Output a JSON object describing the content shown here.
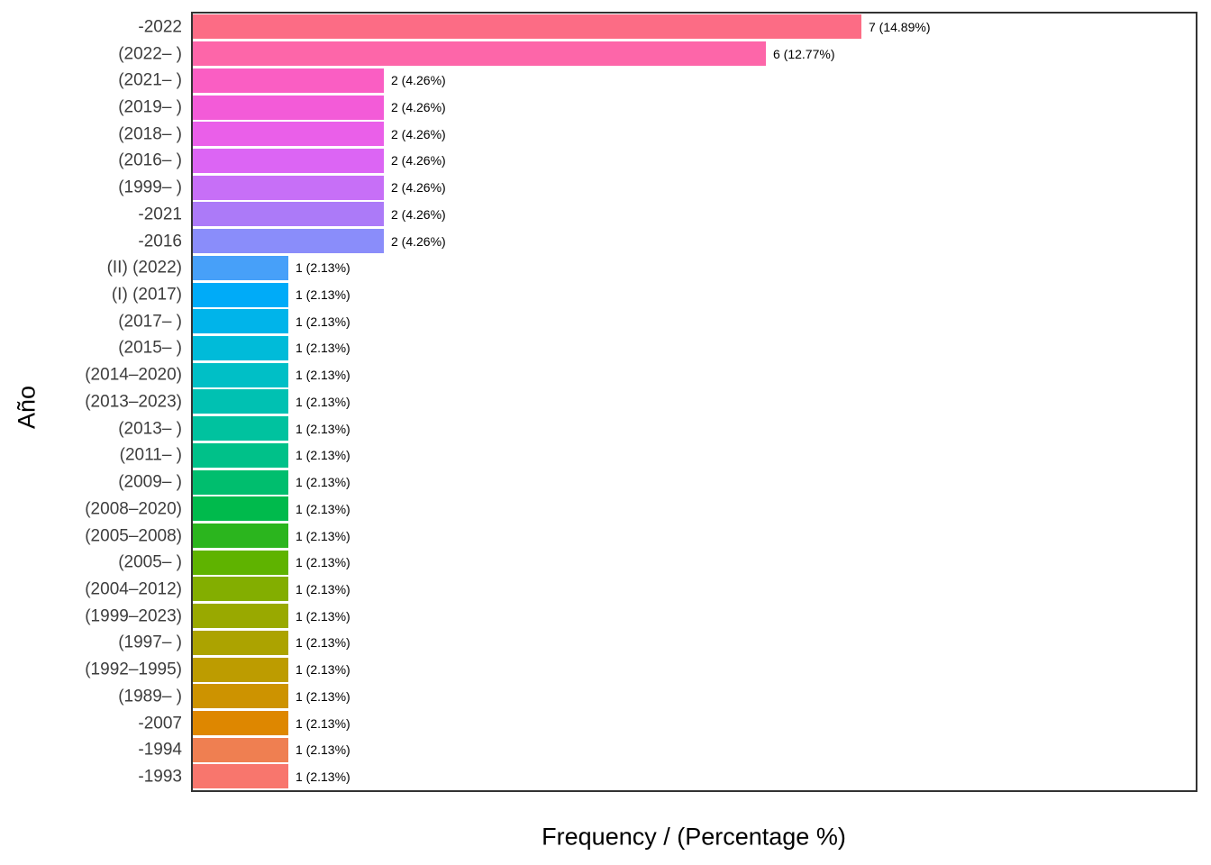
{
  "figure": {
    "background_color": "#ffffff",
    "panel_border_color": "#333333"
  },
  "chart_data": {
    "type": "bar",
    "orientation": "horizontal",
    "title": "",
    "xlabel": "Frequency / (Percentage %)",
    "ylabel": "Año",
    "xlim": [
      0,
      10.5
    ],
    "grid": false,
    "legend_position": "none",
    "categories": [
      "-2022",
      "(2022– )",
      "(2021– )",
      "(2019– )",
      "(2018– )",
      "(2016– )",
      "(1999– )",
      "-2021",
      "-2016",
      "(II) (2022)",
      "(I) (2017)",
      "(2017– )",
      "(2015– )",
      "(2014–2020)",
      "(2013–2023)",
      "(2013– )",
      "(2011– )",
      "(2009– )",
      "(2008–2020)",
      "(2005–2008)",
      "(2005– )",
      "(2004–2012)",
      "(1999–2023)",
      "(1997– )",
      "(1992–1995)",
      "(1989– )",
      "-2007",
      "-1994",
      "-1993"
    ],
    "values": [
      7,
      6,
      2,
      2,
      2,
      2,
      2,
      2,
      2,
      1,
      1,
      1,
      1,
      1,
      1,
      1,
      1,
      1,
      1,
      1,
      1,
      1,
      1,
      1,
      1,
      1,
      1,
      1,
      1
    ],
    "bar_labels": [
      "7 (14.89%)",
      "6 (12.77%)",
      "2 (4.26%)",
      "2 (4.26%)",
      "2 (4.26%)",
      "2 (4.26%)",
      "2 (4.26%)",
      "2 (4.26%)",
      "2 (4.26%)",
      "1 (2.13%)",
      "1 (2.13%)",
      "1 (2.13%)",
      "1 (2.13%)",
      "1 (2.13%)",
      "1 (2.13%)",
      "1 (2.13%)",
      "1 (2.13%)",
      "1 (2.13%)",
      "1 (2.13%)",
      "1 (2.13%)",
      "1 (2.13%)",
      "1 (2.13%)",
      "1 (2.13%)",
      "1 (2.13%)",
      "1 (2.13%)",
      "1 (2.13%)",
      "1 (2.13%)",
      "1 (2.13%)",
      "1 (2.13%)"
    ],
    "bar_colors": [
      "#FC6C85",
      "#FD66A9",
      "#FA5EC3",
      "#F35BD8",
      "#EA5FE9",
      "#DC65F4",
      "#C76FF7",
      "#AC7AF8",
      "#8A8DFA",
      "#47A0F9",
      "#00ABF8",
      "#00B4EA",
      "#00BBD9",
      "#00BFC6",
      "#00C1B2",
      "#00C29F",
      "#00C189",
      "#00BE6E",
      "#00BA4C",
      "#2BB51E",
      "#5FB300",
      "#83AE00",
      "#99A900",
      "#ACA300",
      "#BD9C00",
      "#CD9300",
      "#DE8700",
      "#EF7F51",
      "#F8766D"
    ]
  }
}
